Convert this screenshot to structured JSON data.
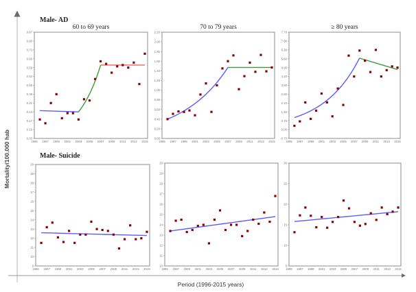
{
  "figure": {
    "y_axis_label": "Mortality/100.000 hab",
    "x_axis_label": "Period (1996-2015 years)",
    "row_titles": [
      "Male- AD",
      "Male- Suicide"
    ],
    "colors": {
      "point": "#8b0000",
      "trend_blue": "#5a5aff",
      "trend_green": "#3c9a3c",
      "trend_red": "#f06060",
      "frame": "#a6a6a6",
      "outer_axis": "#9a9a9a"
    }
  },
  "chart_data": [
    {
      "id": "ad-60-69",
      "type": "scatter",
      "title": "60 to 69  years",
      "xlabel": "",
      "ylabel": "",
      "xlim": [
        1995,
        2015.5
      ],
      "xticks": [
        1995,
        1997,
        1999,
        2001,
        2003,
        2005,
        2007,
        2009,
        2011,
        2013,
        2015
      ],
      "ylim": [
        0.03,
        0.87
      ],
      "yticks": [
        "0.03",
        "0.10",
        "0.17",
        "0.24",
        "0.31",
        "0.38",
        "0.45",
        "0.52",
        "0.59",
        "0.66",
        "0.73",
        "0.80",
        "0.87"
      ],
      "grid": false,
      "x": [
        1996,
        1997,
        1998,
        1999,
        2000,
        2001,
        2002,
        2003,
        2004,
        2005,
        2006,
        2007,
        2008,
        2009,
        2010,
        2011,
        2012,
        2013,
        2014,
        2015
      ],
      "y": [
        0.18,
        0.15,
        0.31,
        0.38,
        0.19,
        0.23,
        0.23,
        0.18,
        0.34,
        0.33,
        0.5,
        0.64,
        0.62,
        0.55,
        0.6,
        0.61,
        0.59,
        0.63,
        0.46,
        0.7
      ],
      "trends": [
        {
          "color": "blue",
          "x": [
            1996,
            2003
          ],
          "y": [
            0.25,
            0.24
          ],
          "shape": "linear"
        },
        {
          "color": "green",
          "x": [
            2003,
            2007
          ],
          "y": [
            0.24,
            0.61
          ],
          "shape": "exp"
        },
        {
          "color": "red",
          "x": [
            2007,
            2015
          ],
          "y": [
            0.61,
            0.61
          ],
          "shape": "linear"
        }
      ]
    },
    {
      "id": "ad-70-79",
      "type": "scatter",
      "title": "70 to 79 years",
      "xlabel": "",
      "ylabel": "",
      "xlim": [
        1995,
        2015.5
      ],
      "xticks": [
        1995,
        1997,
        1999,
        2001,
        2003,
        2005,
        2007,
        2009,
        2011,
        2013,
        2015
      ],
      "ylim": [
        0.0,
        2.2
      ],
      "yticks": [
        "0.00",
        "0.20",
        "0.40",
        "0.60",
        "0.80",
        "1.00",
        "1.20",
        "1.40",
        "1.60",
        "1.80",
        "2.00",
        "2.20"
      ],
      "grid": false,
      "x": [
        1996,
        1997,
        1998,
        1999,
        2000,
        2001,
        2002,
        2003,
        2004,
        2005,
        2006,
        2007,
        2008,
        2009,
        2010,
        2011,
        2012,
        2013,
        2014,
        2015
      ],
      "y": [
        0.4,
        0.51,
        0.56,
        0.55,
        0.58,
        0.48,
        0.91,
        1.14,
        0.55,
        1.1,
        1.45,
        1.6,
        1.72,
        1.02,
        1.29,
        1.57,
        1.38,
        1.73,
        1.39,
        1.47
      ],
      "trends": [
        {
          "color": "blue",
          "x": [
            1996,
            2007
          ],
          "y": [
            0.4,
            1.47
          ],
          "shape": "exp"
        },
        {
          "color": "green",
          "x": [
            2007,
            2015
          ],
          "y": [
            1.47,
            1.47
          ],
          "shape": "linear"
        }
      ]
    },
    {
      "id": "ad-80plus",
      "type": "scatter",
      "title": "≥ 80 years",
      "xlabel": "",
      "ylabel": "",
      "xlim": [
        1995,
        2015.5
      ],
      "xticks": [
        1995,
        1997,
        1999,
        2001,
        2003,
        2005,
        2007,
        2009,
        2011,
        2013,
        2015
      ],
      "ylim": [
        -0.7,
        7.7
      ],
      "yticks": [
        "-0.70",
        "0.00",
        "0.70",
        "1.40",
        "2.10",
        "2.80",
        "3.50",
        "4.20",
        "4.90",
        "5.60",
        "6.30",
        "7.00",
        "7.70"
      ],
      "grid": false,
      "x": [
        1996,
        1997,
        1998,
        1999,
        2000,
        2001,
        2002,
        2003,
        2004,
        2005,
        2006,
        2007,
        2008,
        2009,
        2010,
        2011,
        2012,
        2013,
        2014,
        2015
      ],
      "y": [
        0.3,
        0.65,
        2.15,
        0.85,
        1.5,
        2.85,
        2.15,
        1.05,
        3.25,
        1.95,
        5.85,
        4.2,
        6.25,
        5.45,
        4.55,
        6.3,
        4.2,
        4.7,
        5.0,
        4.9
      ],
      "trends": [
        {
          "color": "blue",
          "x": [
            1996,
            2008
          ],
          "y": [
            0.95,
            5.65
          ],
          "shape": "exp"
        },
        {
          "color": "green",
          "x": [
            2008,
            2015
          ],
          "y": [
            5.65,
            4.75
          ],
          "shape": "linear"
        }
      ]
    },
    {
      "id": "suicide-1",
      "type": "scatter",
      "title": "",
      "xlabel": "",
      "ylabel": "",
      "xlim": [
        1995,
        2015.5
      ],
      "xticks": [
        1995,
        1997,
        1999,
        2001,
        2003,
        2005,
        2007,
        2009,
        2011,
        2013,
        2015
      ],
      "ylim": [
        9,
        20
      ],
      "yticks": [
        "9",
        "10",
        "11",
        "12",
        "13",
        "14",
        "15",
        "16",
        "17",
        "18",
        "19",
        "20"
      ],
      "grid": false,
      "x": [
        1996,
        1997,
        1998,
        1999,
        2000,
        2001,
        2002,
        2003,
        2004,
        2005,
        2006,
        2007,
        2008,
        2009,
        2010,
        2011,
        2012,
        2013,
        2014,
        2015
      ],
      "y": [
        11.5,
        13.2,
        13.7,
        12.1,
        11.6,
        12.8,
        11.5,
        12.4,
        12.4,
        13.8,
        13.0,
        12.9,
        12.8,
        12.4,
        10.9,
        11.9,
        13.4,
        11.9,
        12.0,
        12.7
      ],
      "trends": [
        {
          "color": "blue",
          "x": [
            1996,
            2015
          ],
          "y": [
            12.6,
            12.3
          ],
          "shape": "linear"
        }
      ]
    },
    {
      "id": "suicide-2",
      "type": "scatter",
      "title": "",
      "xlabel": "",
      "ylabel": "",
      "xlim": [
        1995,
        2015.5
      ],
      "xticks": [
        1995,
        1997,
        1999,
        2001,
        2003,
        2005,
        2007,
        2009,
        2011,
        2013,
        2015
      ],
      "ylim": [
        10,
        20
      ],
      "yticks": [
        "10",
        "11",
        "12",
        "13",
        "14",
        "15",
        "16",
        "17",
        "18",
        "19",
        "20"
      ],
      "grid": false,
      "x": [
        1996,
        1997,
        1998,
        1999,
        2000,
        2001,
        2002,
        2003,
        2004,
        2005,
        2006,
        2007,
        2008,
        2009,
        2010,
        2011,
        2012,
        2013,
        2014,
        2015
      ],
      "y": [
        13.4,
        14.4,
        14.5,
        13.3,
        13.5,
        13.9,
        14.0,
        12.2,
        14.5,
        15.4,
        13.5,
        14.0,
        14.0,
        12.9,
        13.4,
        14.5,
        14.1,
        15.2,
        14.3,
        16.8
      ],
      "trends": [
        {
          "color": "blue",
          "x": [
            1996,
            2015
          ],
          "y": [
            13.4,
            14.8
          ],
          "shape": "linear"
        }
      ]
    },
    {
      "id": "suicide-3",
      "type": "scatter",
      "title": "",
      "xlabel": "",
      "ylabel": "",
      "xlim": [
        1995,
        2015.5
      ],
      "xticks": [
        1995,
        1997,
        1999,
        2001,
        2003,
        2005,
        2007,
        2009,
        2011,
        2013,
        2015
      ],
      "ylim": [
        5,
        30
      ],
      "yticks": [
        "5",
        "10",
        "15",
        "20",
        "25",
        "30"
      ],
      "grid": false,
      "x": [
        1996,
        1997,
        1998,
        1999,
        2000,
        2001,
        2002,
        2003,
        2004,
        2005,
        2006,
        2007,
        2008,
        2009,
        2010,
        2011,
        2012,
        2013,
        2014,
        2015
      ],
      "y": [
        13.2,
        17.3,
        19.2,
        17.2,
        14.4,
        16.9,
        14.3,
        15.7,
        16.9,
        20.9,
        19.0,
        15.7,
        14.8,
        15.2,
        17.8,
        16.2,
        19.2,
        17.6,
        18.2,
        19.2
      ],
      "trends": [
        {
          "color": "blue",
          "x": [
            1996,
            2015
          ],
          "y": [
            15.8,
            18.2
          ],
          "shape": "linear"
        }
      ]
    }
  ]
}
